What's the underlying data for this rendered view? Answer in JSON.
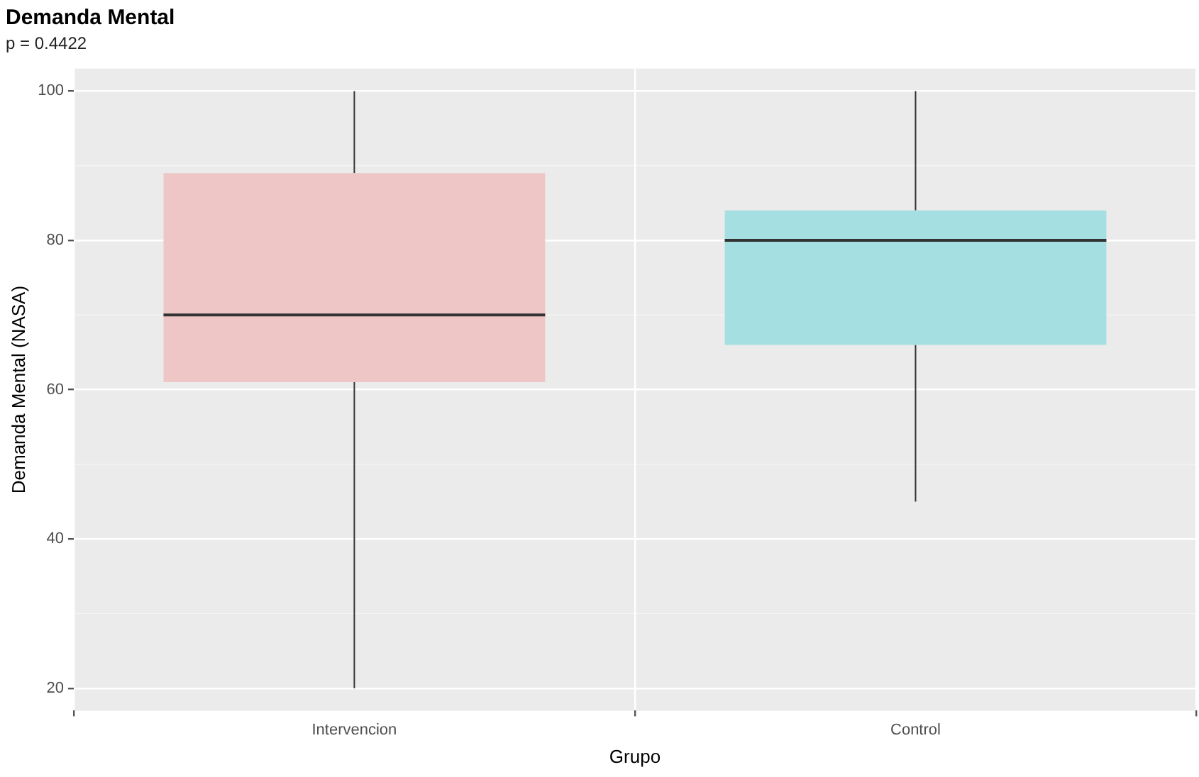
{
  "chart_data": {
    "type": "box",
    "title": "Demanda Mental",
    "subtitle": "p = 0.4422",
    "xlabel": "Grupo",
    "ylabel": "Demanda Mental (NASA)",
    "categories": [
      "Intervencion",
      "Control"
    ],
    "boxes": [
      {
        "low": 20,
        "q1": 61,
        "median": 70,
        "q3": 89,
        "high": 100
      },
      {
        "low": 45,
        "q1": 66,
        "median": 80,
        "q3": 84,
        "high": 100
      }
    ],
    "colors": [
      "#eec6c5",
      "#a6dfe1"
    ],
    "ylim": [
      17,
      103
    ],
    "yticks": [
      20,
      40,
      60,
      80,
      100
    ],
    "grid": true
  }
}
